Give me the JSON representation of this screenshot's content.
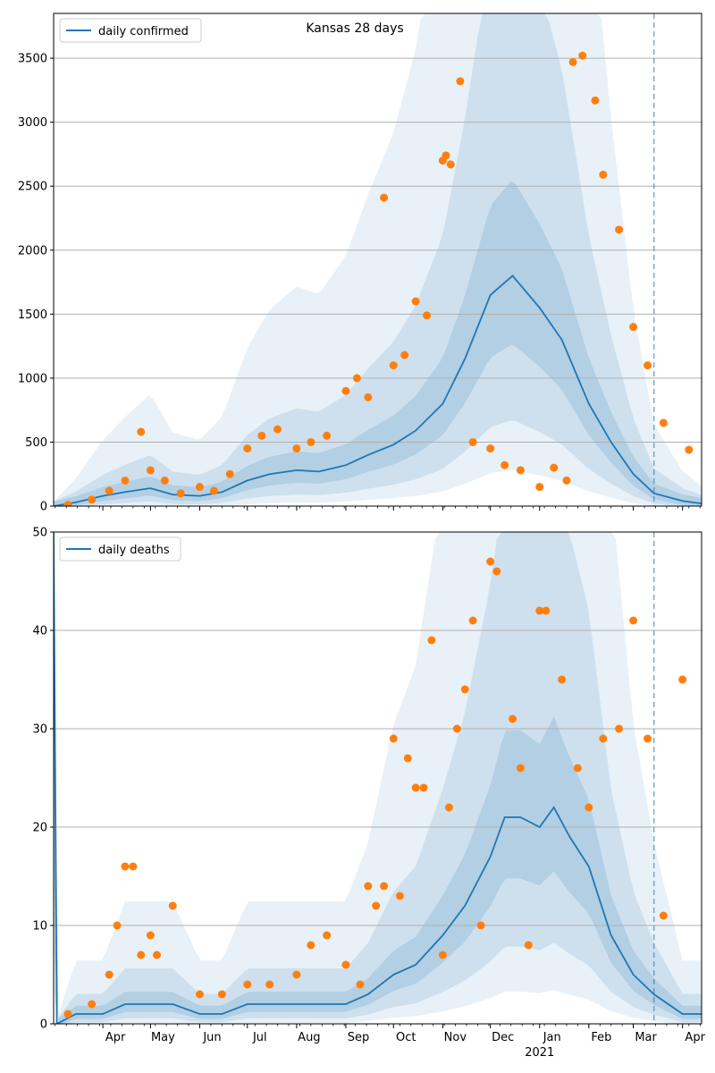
{
  "chart_data": [
    {
      "type": "line",
      "title": "Kansas 28 days",
      "xlabel": "",
      "ylabel": "",
      "ylim": [
        0,
        3850
      ],
      "x_range": [
        "2020-03-01",
        "2021-04-13"
      ],
      "forecast_start": "2021-03-14",
      "grid": "horizontal",
      "legend": {
        "position": "top-left",
        "entries": [
          "daily confirmed"
        ]
      },
      "y_ticks": [
        0,
        500,
        1000,
        1500,
        2000,
        2500,
        3000,
        3500
      ],
      "x_ticks": [
        "Apr",
        "May",
        "Jun",
        "Jul",
        "Aug",
        "Sep",
        "Oct",
        "Nov",
        "Dec",
        "Jan",
        "Feb",
        "Mar",
        "Apr"
      ],
      "x_tick_dates": [
        "2020-04-01",
        "2020-05-01",
        "2020-06-01",
        "2020-07-01",
        "2020-08-01",
        "2020-09-01",
        "2020-10-01",
        "2020-11-01",
        "2020-12-01",
        "2021-01-01",
        "2021-02-01",
        "2021-03-01",
        "2021-04-01"
      ],
      "x_year_label": "2021",
      "colors": {
        "line": "#1f77b4",
        "points": "#ff7f0e",
        "band": "#1f77b4",
        "forecast_line": "#1f77b4"
      },
      "series": [
        {
          "name": "daily confirmed",
          "kind": "line",
          "dates": [
            "2020-03-01",
            "2020-03-15",
            "2020-04-01",
            "2020-04-15",
            "2020-05-01",
            "2020-05-15",
            "2020-06-01",
            "2020-06-15",
            "2020-07-01",
            "2020-07-15",
            "2020-08-01",
            "2020-08-15",
            "2020-09-01",
            "2020-09-15",
            "2020-10-01",
            "2020-10-15",
            "2020-11-01",
            "2020-11-15",
            "2020-12-01",
            "2020-12-15",
            "2021-01-01",
            "2021-01-15",
            "2021-02-01",
            "2021-02-15",
            "2021-03-01",
            "2021-03-14",
            "2021-04-01",
            "2021-04-13"
          ],
          "values": [
            0,
            30,
            80,
            110,
            140,
            90,
            80,
            110,
            200,
            250,
            280,
            270,
            320,
            400,
            480,
            590,
            800,
            1150,
            1650,
            1800,
            1550,
            1300,
            800,
            500,
            250,
            100,
            40,
            20
          ]
        },
        {
          "name": "",
          "kind": "points",
          "dates": [
            "2020-03-10",
            "2020-03-25",
            "2020-04-05",
            "2020-04-15",
            "2020-04-25",
            "2020-05-01",
            "2020-05-10",
            "2020-05-20",
            "2020-06-01",
            "2020-06-10",
            "2020-06-20",
            "2020-07-01",
            "2020-07-10",
            "2020-07-20",
            "2020-08-01",
            "2020-08-10",
            "2020-08-20",
            "2020-09-01",
            "2020-09-08",
            "2020-09-15",
            "2020-09-25",
            "2020-10-01",
            "2020-10-08",
            "2020-10-15",
            "2020-10-22",
            "2020-11-01",
            "2020-11-03",
            "2020-11-06",
            "2020-11-12",
            "2020-11-20",
            "2020-12-01",
            "2020-12-10",
            "2020-12-20",
            "2021-01-01",
            "2021-01-10",
            "2021-01-18",
            "2021-01-22",
            "2021-01-28",
            "2021-02-05",
            "2021-02-10",
            "2021-02-20",
            "2021-03-01",
            "2021-03-10",
            "2021-03-20",
            "2021-04-05"
          ],
          "values": [
            10,
            50,
            120,
            200,
            580,
            280,
            200,
            100,
            150,
            120,
            250,
            450,
            550,
            600,
            450,
            500,
            550,
            900,
            1000,
            850,
            2410,
            1100,
            1180,
            1600,
            1490,
            2700,
            2740,
            2670,
            3320,
            500,
            450,
            320,
            280,
            150,
            300,
            200,
            3470,
            3520,
            3170,
            2590,
            2160,
            1400,
            1100,
            650,
            440
          ]
        }
      ]
    },
    {
      "type": "line",
      "title": "",
      "xlabel": "",
      "ylabel": "",
      "ylim": [
        0,
        50
      ],
      "x_range": [
        "2020-03-01",
        "2021-04-13"
      ],
      "forecast_start": "2021-03-14",
      "grid": "horizontal",
      "legend": {
        "position": "top-left",
        "entries": [
          "daily deaths"
        ]
      },
      "y_ticks": [
        0,
        10,
        20,
        30,
        40,
        50
      ],
      "x_ticks": [
        "Apr",
        "May",
        "Jun",
        "Jul",
        "Aug",
        "Sep",
        "Oct",
        "Nov",
        "Dec",
        "Jan",
        "Feb",
        "Mar",
        "Apr"
      ],
      "x_tick_dates": [
        "2020-04-01",
        "2020-05-01",
        "2020-06-01",
        "2020-07-01",
        "2020-08-01",
        "2020-09-01",
        "2020-10-01",
        "2020-11-01",
        "2020-12-01",
        "2021-01-01",
        "2021-02-01",
        "2021-03-01",
        "2021-04-01"
      ],
      "x_year_label": "2021",
      "colors": {
        "line": "#1f77b4",
        "points": "#ff7f0e",
        "band": "#1f77b4",
        "forecast_line": "#1f77b4"
      },
      "series": [
        {
          "name": "daily deaths",
          "kind": "line",
          "dates": [
            "2020-03-01",
            "2020-03-03",
            "2020-03-15",
            "2020-04-01",
            "2020-04-15",
            "2020-05-01",
            "2020-05-15",
            "2020-06-01",
            "2020-06-15",
            "2020-07-01",
            "2020-07-15",
            "2020-08-01",
            "2020-08-15",
            "2020-09-01",
            "2020-09-15",
            "2020-10-01",
            "2020-10-15",
            "2020-11-01",
            "2020-11-15",
            "2020-12-01",
            "2020-12-10",
            "2020-12-20",
            "2021-01-01",
            "2021-01-10",
            "2021-01-20",
            "2021-02-01",
            "2021-02-15",
            "2021-03-01",
            "2021-03-14",
            "2021-04-01",
            "2021-04-13"
          ],
          "values": [
            50,
            0,
            1,
            1,
            2,
            2,
            2,
            1,
            1,
            2,
            2,
            2,
            2,
            2,
            3,
            5,
            6,
            9,
            12,
            17,
            21,
            21,
            20,
            22,
            19,
            16,
            9,
            5,
            3,
            1,
            1
          ]
        },
        {
          "name": "",
          "kind": "points",
          "dates": [
            "2020-03-10",
            "2020-03-25",
            "2020-04-05",
            "2020-04-10",
            "2020-04-15",
            "2020-04-20",
            "2020-04-25",
            "2020-05-01",
            "2020-05-05",
            "2020-05-15",
            "2020-06-01",
            "2020-06-15",
            "2020-07-01",
            "2020-07-15",
            "2020-08-01",
            "2020-08-10",
            "2020-08-20",
            "2020-09-01",
            "2020-09-10",
            "2020-09-15",
            "2020-09-20",
            "2020-09-25",
            "2020-10-01",
            "2020-10-05",
            "2020-10-10",
            "2020-10-15",
            "2020-10-20",
            "2020-10-25",
            "2020-11-01",
            "2020-11-05",
            "2020-11-10",
            "2020-11-15",
            "2020-11-20",
            "2020-11-25",
            "2020-12-01",
            "2020-12-05",
            "2020-12-15",
            "2020-12-20",
            "2020-12-25",
            "2021-01-01",
            "2021-01-05",
            "2021-01-15",
            "2021-01-25",
            "2021-02-01",
            "2021-02-10",
            "2021-02-20",
            "2021-03-01",
            "2021-03-10",
            "2021-03-20",
            "2021-04-01"
          ],
          "values": [
            1,
            2,
            5,
            10,
            16,
            16,
            7,
            9,
            7,
            12,
            3,
            3,
            4,
            4,
            5,
            8,
            9,
            6,
            4,
            14,
            12,
            14,
            29,
            13,
            27,
            24,
            24,
            39,
            7,
            22,
            30,
            34,
            41,
            10,
            47,
            46,
            31,
            26,
            8,
            42,
            42,
            35,
            26,
            22,
            29,
            30,
            41,
            29,
            11,
            35
          ]
        }
      ]
    }
  ]
}
